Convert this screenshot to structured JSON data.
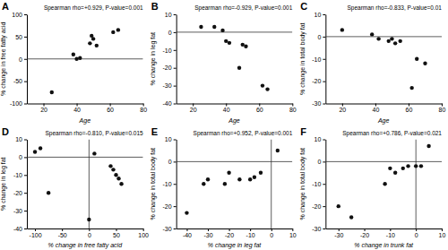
{
  "chart_data": [
    {
      "type": "scatter",
      "title": "A",
      "x": [
        25,
        38,
        40,
        42,
        48,
        49,
        50,
        52,
        62,
        65
      ],
      "values": [
        -75,
        10,
        0,
        2,
        35,
        52,
        45,
        30,
        60,
        65
      ],
      "xlabel": "Age",
      "ylabel": "% change in free fatty acid",
      "annotation": "Spearman rho=+0.929, P-value=0.001",
      "color": "#111111",
      "xlim": [
        10,
        80
      ],
      "ylim": [
        -100,
        100
      ],
      "xticks": [
        20,
        40,
        60,
        80
      ],
      "yticks": [
        -100,
        -50,
        0,
        50,
        100
      ],
      "grid": false
    },
    {
      "type": "scatter",
      "title": "B",
      "x": [
        25,
        33,
        38,
        40,
        42,
        48,
        50,
        52,
        62,
        65
      ],
      "values": [
        3,
        3,
        1,
        -5,
        -6,
        -20,
        -7,
        -8,
        -30,
        -32
      ],
      "xlabel": "Age",
      "ylabel": "% change in leg fat",
      "annotation": "Spearman rho=-0.929, P-value=0.001",
      "color": "#111111",
      "xlim": [
        10,
        80
      ],
      "ylim": [
        -40,
        10
      ],
      "xticks": [
        20,
        40,
        60,
        80
      ],
      "yticks": [
        -40,
        -30,
        -20,
        -10,
        0,
        10
      ],
      "grid": false
    },
    {
      "type": "scatter",
      "title": "C",
      "x": [
        20,
        38,
        42,
        48,
        50,
        52,
        55,
        62,
        65,
        70
      ],
      "values": [
        3,
        1,
        -1,
        -2,
        -1,
        -3,
        -2,
        -23,
        -10,
        -12
      ],
      "xlabel": "Age",
      "ylabel": "% change in total body fat",
      "annotation": "Spearman rho=-0.833, P-value=0.01",
      "color": "#111111",
      "xlim": [
        10,
        80
      ],
      "ylim": [
        -30,
        10
      ],
      "xticks": [
        20,
        40,
        60,
        80
      ],
      "yticks": [
        -30,
        -20,
        -10,
        0,
        10
      ],
      "grid": false
    },
    {
      "type": "scatter",
      "title": "D",
      "x": [
        -100,
        -90,
        -75,
        0,
        10,
        40,
        45,
        50,
        55,
        60
      ],
      "values": [
        3,
        5,
        -20,
        -35,
        2,
        -5,
        -7,
        -10,
        -12,
        -15
      ],
      "xlabel": "% change in free fatty acid",
      "ylabel": "% change in leg fat",
      "annotation": "Spearman rho=-0.810, P-value=0.015",
      "color": "#111111",
      "xlim": [
        -115,
        100
      ],
      "ylim": [
        -40,
        10
      ],
      "xticks": [
        -100,
        -50,
        0,
        50,
        100
      ],
      "yticks": [
        -40,
        -30,
        -20,
        -10,
        0,
        10
      ],
      "grid": false
    },
    {
      "type": "scatter",
      "title": "E",
      "x": [
        -40,
        -32,
        -30,
        -22,
        -20,
        -15,
        -10,
        -8,
        -5,
        3
      ],
      "values": [
        -23,
        -10,
        -8,
        -10,
        -5,
        -8,
        -8,
        -7,
        -5,
        5
      ],
      "xlabel": "% change in leg fat",
      "ylabel": "% change in total body fat",
      "annotation": "Spearman rho=+0.952, P-value=0.001",
      "color": "#111111",
      "xlim": [
        -45,
        10
      ],
      "ylim": [
        -30,
        10
      ],
      "xticks": [
        -40,
        -30,
        -20,
        -10,
        0,
        10
      ],
      "yticks": [
        -30,
        -20,
        -10,
        0,
        10
      ],
      "grid": false
    },
    {
      "type": "scatter",
      "title": "F",
      "x": [
        -30,
        -25,
        -12,
        -10,
        -8,
        -5,
        -3,
        0,
        2,
        5
      ],
      "values": [
        -20,
        -25,
        -10,
        -3,
        -5,
        -3,
        -2,
        -2,
        -2,
        7
      ],
      "xlabel": "% change in trunk fat",
      "ylabel": "% change in total body fat",
      "annotation": "Spearman rho=+0.786, P-value=0.021",
      "color": "#111111",
      "xlim": [
        -35,
        10
      ],
      "ylim": [
        -30,
        10
      ],
      "xticks": [
        -30,
        -20,
        -10,
        0,
        10
      ],
      "yticks": [
        -30,
        -20,
        -10,
        0,
        10
      ],
      "grid": false
    }
  ]
}
